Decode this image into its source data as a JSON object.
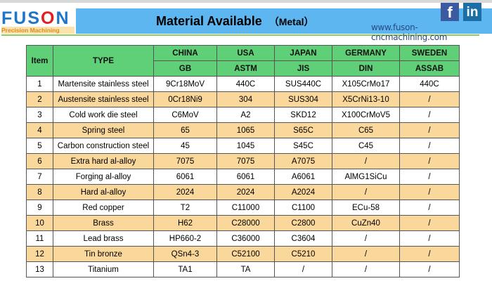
{
  "header": {
    "brand_prefix": "FUS",
    "brand_o": "O",
    "brand_suffix": "N",
    "brand_tagline": "Precision Machining",
    "title": "Material Available",
    "title_suffix": "（Metal）",
    "url": "www.fuson-cncmachining.com",
    "facebook": "f",
    "linkedin": "in"
  },
  "table": {
    "headers": {
      "item": "Item",
      "type": "TYPE",
      "countries": [
        "CHINA",
        "USA",
        "JAPAN",
        "GERMANY",
        "SWEDEN"
      ],
      "standards": [
        "GB",
        "ASTM",
        "JIS",
        "DIN",
        "ASSAB"
      ]
    },
    "rows": [
      [
        "1",
        "Martensite stainless steel",
        "9Cr18MoV",
        "440C",
        "SUS440C",
        "X105CrMo17",
        "440C"
      ],
      [
        "2",
        "Austensite stainless steel",
        "0Cr18Ni9",
        "304",
        "SUS304",
        "X5CrNi13-10",
        "/"
      ],
      [
        "3",
        "Cold work die steel",
        "C6MoV",
        "A2",
        "SKD12",
        "X100CrMoV5",
        "/"
      ],
      [
        "4",
        "Spring steel",
        "65",
        "1065",
        "S65C",
        "C65",
        "/"
      ],
      [
        "5",
        "Carbon construction steel",
        "45",
        "1045",
        "S45C",
        "C45",
        "/"
      ],
      [
        "6",
        "Extra hard al-alloy",
        "7075",
        "7075",
        "A7075",
        "/",
        "/"
      ],
      [
        "7",
        "Forging al-alloy",
        "6061",
        "6061",
        "A6061",
        "AlMG1SiCu",
        "/"
      ],
      [
        "8",
        "Hard al-alloy",
        "2024",
        "2024",
        "A2024",
        "/",
        "/"
      ],
      [
        "9",
        "Red copper",
        "T2",
        "C11000",
        "C1100",
        "ECu-58",
        "/"
      ],
      [
        "10",
        "Brass",
        "H62",
        "C28000",
        "C2800",
        "CuZn40",
        "/"
      ],
      [
        "11",
        "Lead brass",
        "HP660-2",
        "C36000",
        "C3604",
        "/",
        "/"
      ],
      [
        "12",
        "Tin bronze",
        "QSn4-3",
        "C52100",
        "C5210",
        "/",
        "/"
      ],
      [
        "13",
        "Titanium",
        "TA1",
        "TA",
        "/",
        "/",
        "/"
      ]
    ]
  }
}
